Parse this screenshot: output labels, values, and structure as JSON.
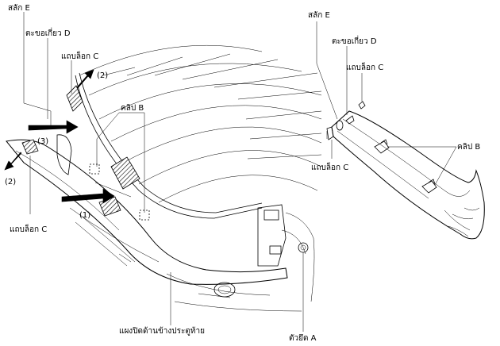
{
  "left_view": {
    "latch_e": "สลัก E",
    "hook_d": "ตะขอเกี่ยว D",
    "tab_c_top": "แถบล็อก C",
    "clip_b": "คลิป B",
    "step_2_top": "(2)",
    "step_3": "(3)",
    "step_2_left": "(2)",
    "step_1": "(1)",
    "tab_c_bottom": "แถบล็อก C",
    "panel": "แผงปิดด้านข้างประตูท้าย",
    "fastener_a": "ตัวยึด A"
  },
  "right_view": {
    "latch_e": "สลัก E",
    "hook_d": "ตะขอเกี่ยว D",
    "tab_c_top": "แถบล็อก C",
    "clip_b": "คลิป B",
    "tab_c_left": "แถบล็อก C"
  }
}
